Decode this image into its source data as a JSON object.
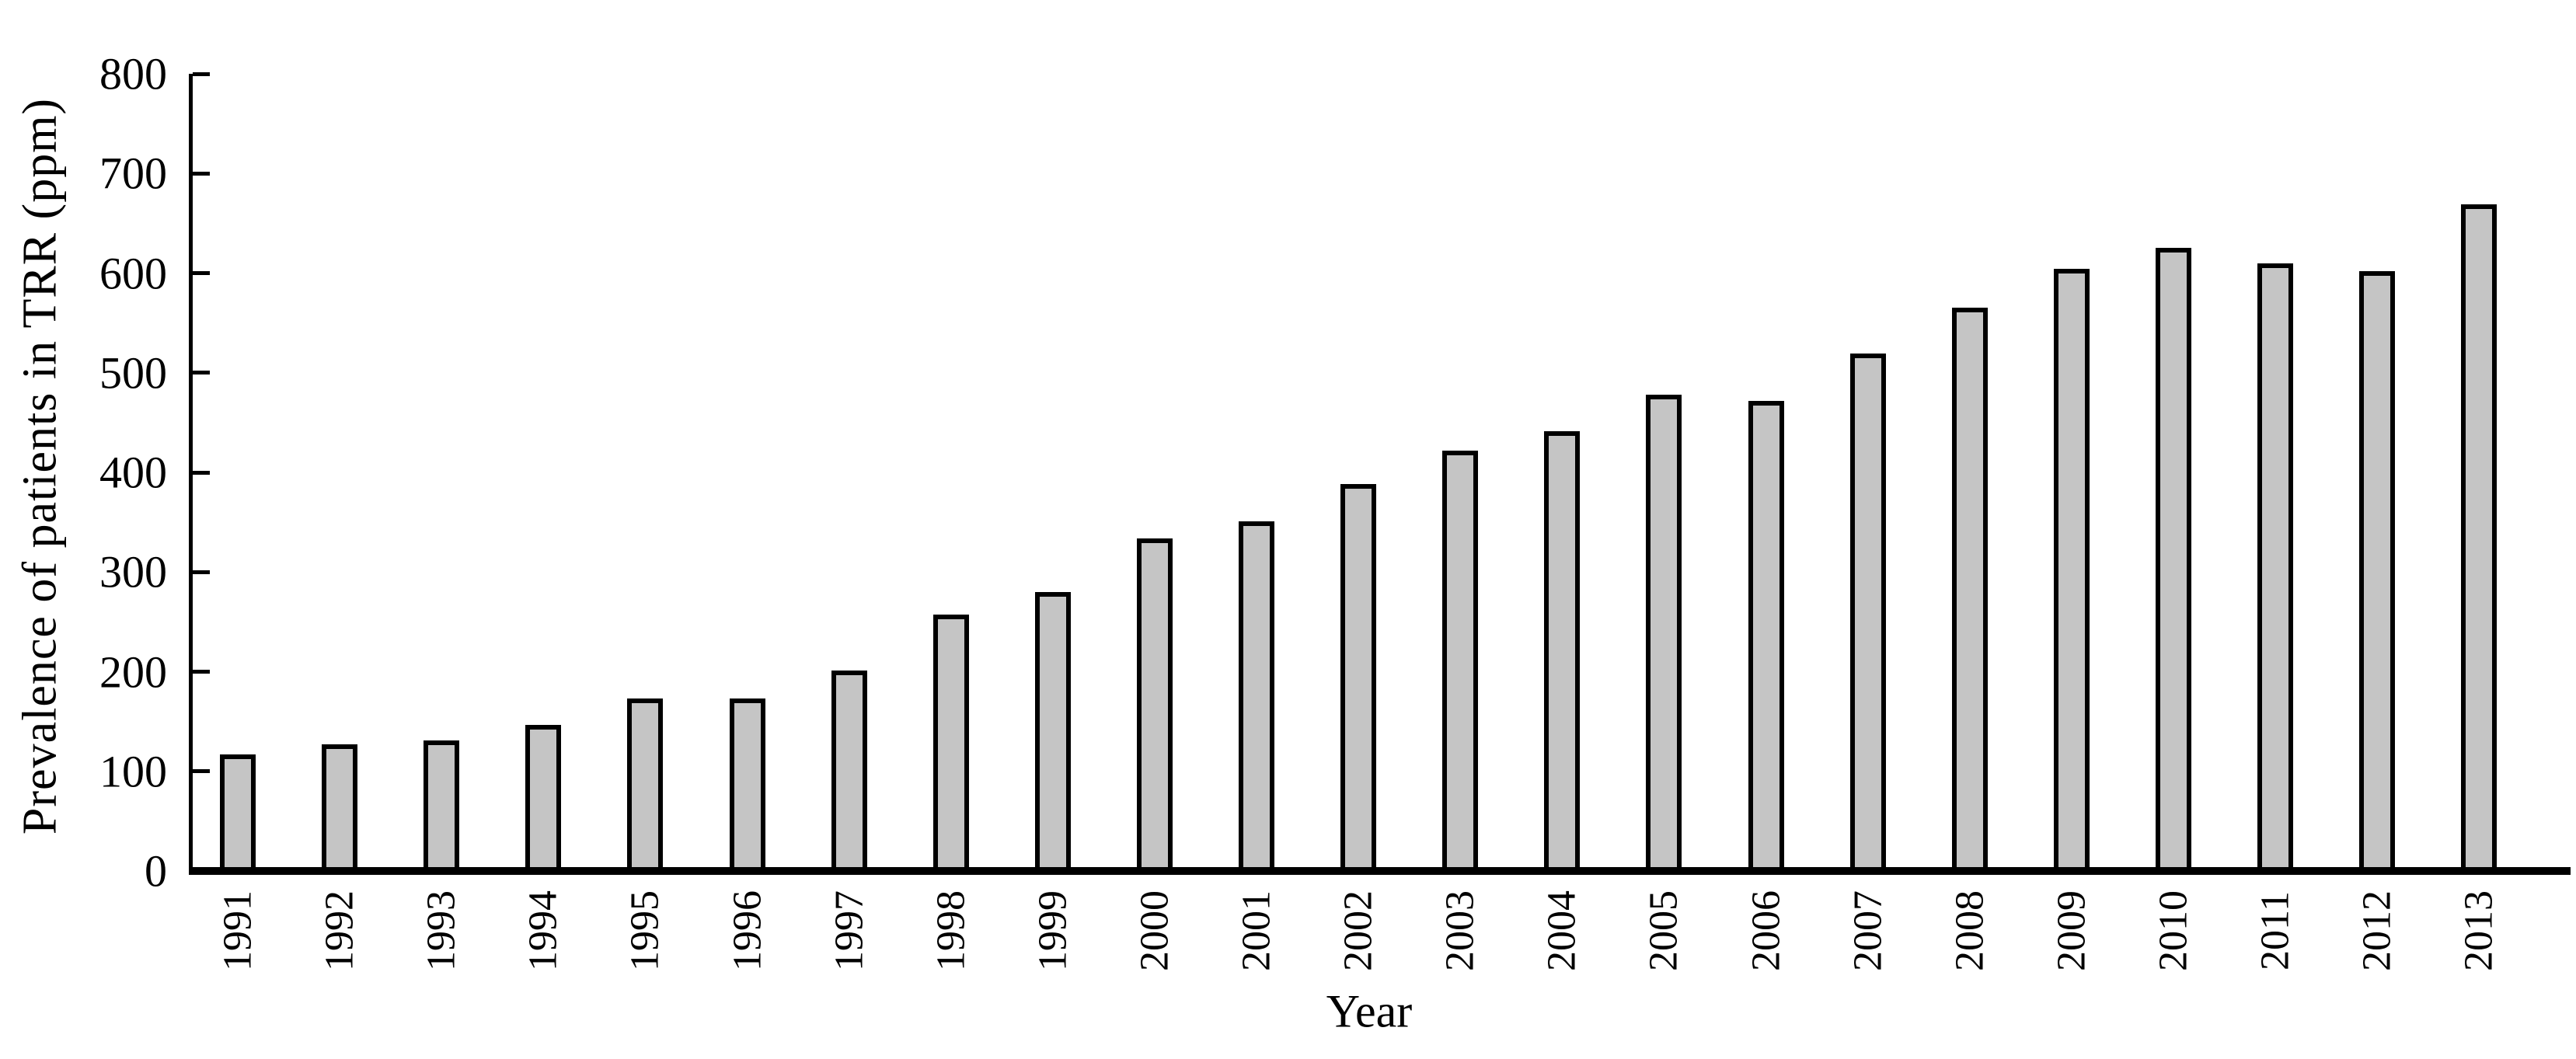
{
  "chart_data": {
    "type": "bar",
    "title": "",
    "xlabel": "Year",
    "ylabel": "Prevalence of patients in TRR (ppm)",
    "ylim": [
      0,
      800
    ],
    "ytick_step": 100,
    "ytick_labels": [
      "0",
      "100",
      "200",
      "300",
      "400",
      "500",
      "600",
      "700",
      "800"
    ],
    "grid": false,
    "legend": "none",
    "bar_fill_color": "#c5c5c5",
    "bar_border_color": "#000000",
    "categories": [
      "1991",
      "1992",
      "1993",
      "1994",
      "1995",
      "1996",
      "1997",
      "1998",
      "1999",
      "2000",
      "2001",
      "2002",
      "2003",
      "2004",
      "2005",
      "2006",
      "2007",
      "2008",
      "2009",
      "2010",
      "2011",
      "2012",
      "2013"
    ],
    "values": [
      117,
      127,
      131,
      147,
      173,
      173,
      201,
      257,
      280,
      334,
      351,
      388,
      422,
      441,
      478,
      472,
      519,
      565,
      604,
      625,
      610,
      602,
      669
    ]
  }
}
